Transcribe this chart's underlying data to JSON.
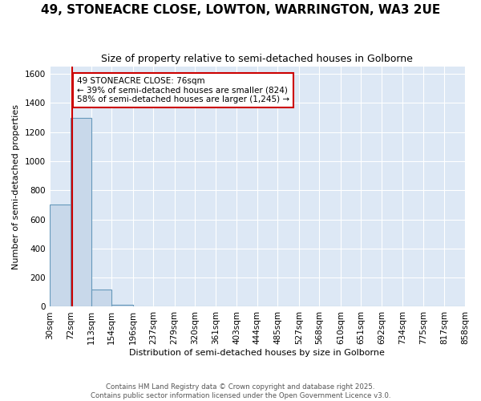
{
  "title": "49, STONEACRE CLOSE, LOWTON, WARRINGTON, WA3 2UE",
  "subtitle": "Size of property relative to semi-detached houses in Golborne",
  "xlabel": "Distribution of semi-detached houses by size in Golborne",
  "ylabel": "Number of semi-detached properties",
  "bin_edges": [
    30,
    72,
    113,
    154,
    196,
    237,
    279,
    320,
    361,
    403,
    444,
    485,
    527,
    568,
    610,
    651,
    692,
    734,
    775,
    817,
    858
  ],
  "bar_heights": [
    700,
    1300,
    120,
    15,
    5,
    0,
    0,
    0,
    0,
    0,
    0,
    0,
    0,
    0,
    0,
    0,
    0,
    0,
    0,
    0
  ],
  "property_size": 76,
  "bar_facecolor": "#c8d8ea",
  "bar_edgecolor": "#6699bb",
  "vline_color": "#cc0000",
  "annotation_text": "49 STONEACRE CLOSE: 76sqm\n← 39% of semi-detached houses are smaller (824)\n58% of semi-detached houses are larger (1,245) →",
  "annotation_box_edgecolor": "#cc0000",
  "annotation_box_facecolor": "#ffffff",
  "ylim": [
    0,
    1650
  ],
  "yticks": [
    0,
    200,
    400,
    600,
    800,
    1000,
    1200,
    1400,
    1600
  ],
  "background_color": "#ffffff",
  "plot_bg_color": "#dde8f5",
  "grid_color": "#ffffff",
  "title_fontsize": 11,
  "subtitle_fontsize": 9,
  "axis_labelsize": 8,
  "tick_labelsize": 7.5,
  "footer_line1": "Contains HM Land Registry data © Crown copyright and database right 2025.",
  "footer_line2": "Contains public sector information licensed under the Open Government Licence v3.0."
}
